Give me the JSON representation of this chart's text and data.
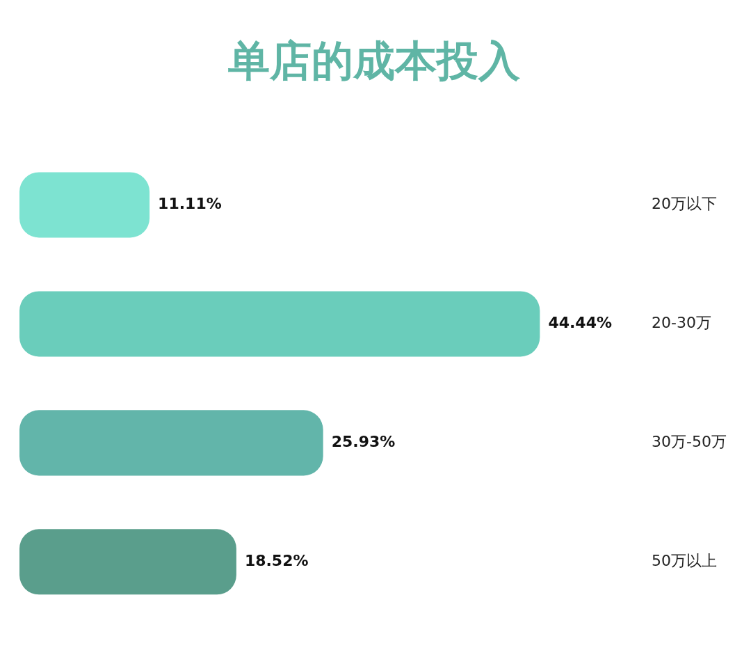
{
  "chart_data": {
    "type": "bar",
    "orientation": "horizontal",
    "title": "单店的成本投入",
    "categories": [
      "20万以下",
      "20-30万",
      "30万-50万",
      "50万以上"
    ],
    "values": [
      11.11,
      44.44,
      25.93,
      18.52
    ],
    "value_labels": [
      "11.11%",
      "44.44%",
      "25.93%",
      "18.52%"
    ],
    "colors": [
      "#7de3d1",
      "#6acdbb",
      "#62b5aa",
      "#5a9e8c"
    ],
    "grid": false,
    "legend": false
  }
}
